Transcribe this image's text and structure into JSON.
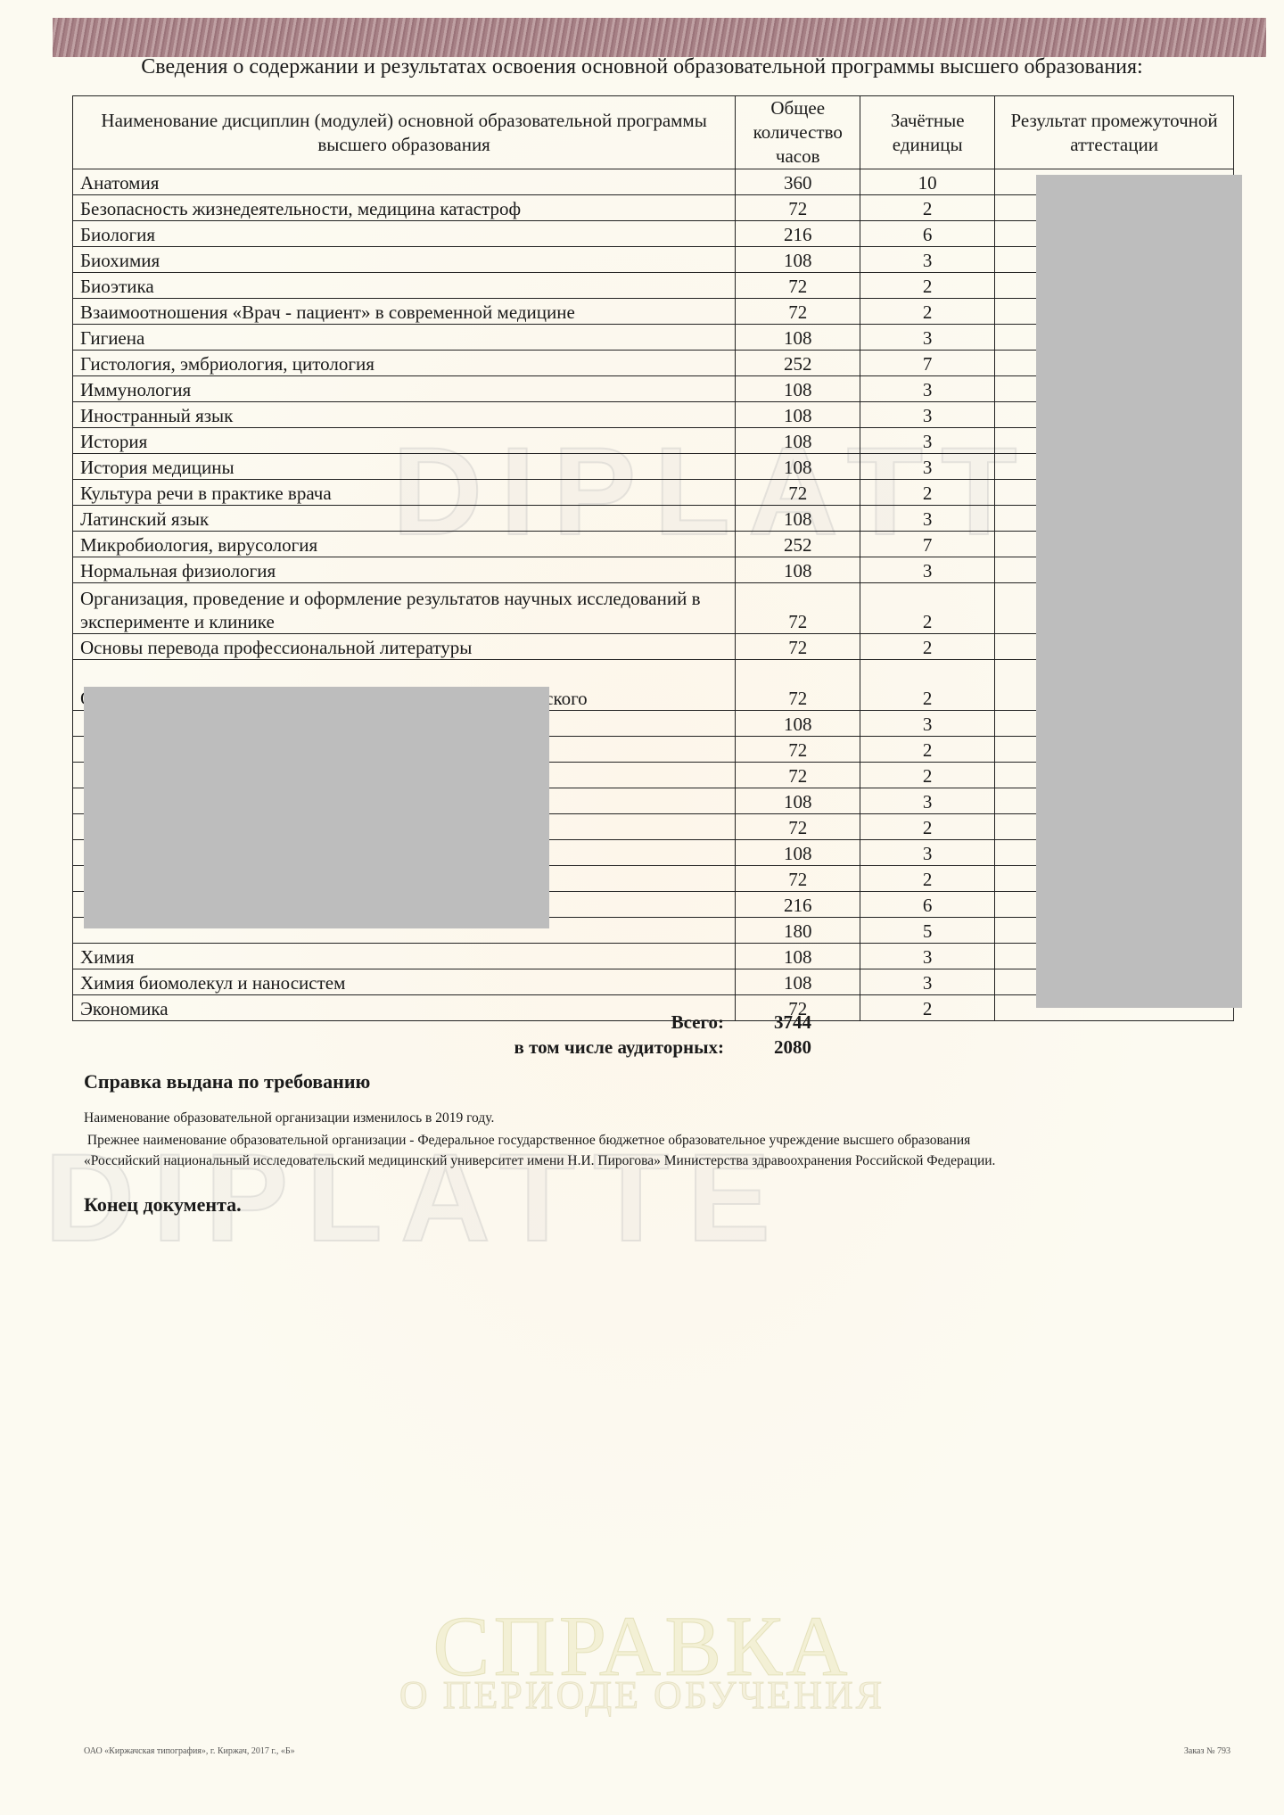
{
  "title": "Сведения о содержании и результатах освоения основной образовательной программы высшего  образования:",
  "table": {
    "headers": [
      "Наименование дисциплин (модулей) основной образовательной программы высшего  образования",
      "Общее количество часов",
      "Зачётные единицы",
      "Результат промежуточной аттестации"
    ],
    "rows": [
      {
        "name": "Анатомия",
        "hours": "360",
        "credits": "10",
        "lines": 1
      },
      {
        "name": "Безопасность жизнедеятельности, медицина катастроф",
        "hours": "72",
        "credits": "2",
        "lines": 1
      },
      {
        "name": "Биология",
        "hours": "216",
        "credits": "6",
        "lines": 1
      },
      {
        "name": "Биохимия",
        "hours": "108",
        "credits": "3",
        "lines": 1
      },
      {
        "name": "Биоэтика",
        "hours": "72",
        "credits": "2",
        "lines": 1
      },
      {
        "name": "Взаимоотношения «Врач - пациент» в современной медицине",
        "hours": "72",
        "credits": "2",
        "lines": 1
      },
      {
        "name": "Гигиена",
        "hours": "108",
        "credits": "3",
        "lines": 1
      },
      {
        "name": "Гистология, эмбриология, цитология",
        "hours": "252",
        "credits": "7",
        "lines": 1
      },
      {
        "name": "Иммунология",
        "hours": "108",
        "credits": "3",
        "lines": 1
      },
      {
        "name": "Иностранный язык",
        "hours": "108",
        "credits": "3",
        "lines": 1
      },
      {
        "name": "История",
        "hours": "108",
        "credits": "3",
        "lines": 1
      },
      {
        "name": "История медицины",
        "hours": "108",
        "credits": "3",
        "lines": 1
      },
      {
        "name": "Культура речи в практике врача",
        "hours": "72",
        "credits": "2",
        "lines": 1
      },
      {
        "name": "Латинский язык",
        "hours": "108",
        "credits": "3",
        "lines": 1
      },
      {
        "name": "Микробиология, вирусология",
        "hours": "252",
        "credits": "7",
        "lines": 1
      },
      {
        "name": "Нормальная физиология",
        "hours": "108",
        "credits": "3",
        "lines": 1
      },
      {
        "name": "Организация, проведение и оформление результатов научных исследований в эксперименте и клинике",
        "hours": "72",
        "credits": "2",
        "lines": 2
      },
      {
        "name": "Основы перевода профессиональной литературы",
        "hours": "72",
        "credits": "2",
        "lines": 1
      },
      {
        "name": "Основы ухода за больными терапевтического и хирургического",
        "hours": "72",
        "credits": "2",
        "lines": 2
      },
      {
        "name": "",
        "hours": "108",
        "credits": "3",
        "lines": 1
      },
      {
        "name": "",
        "hours": "72",
        "credits": "2",
        "lines": 1
      },
      {
        "name": "",
        "hours": "72",
        "credits": "2",
        "lines": 1
      },
      {
        "name": "",
        "hours": "108",
        "credits": "3",
        "lines": 1
      },
      {
        "name": "",
        "hours": "72",
        "credits": "2",
        "lines": 1
      },
      {
        "name": "",
        "hours": "108",
        "credits": "3",
        "lines": 1
      },
      {
        "name": "",
        "hours": "72",
        "credits": "2",
        "lines": 1
      },
      {
        "name": "",
        "hours": "216",
        "credits": "6",
        "lines": 1
      },
      {
        "name": "",
        "hours": "180",
        "credits": "5",
        "lines": 1
      },
      {
        "name": "Химия",
        "hours": "108",
        "credits": "3",
        "lines": 1
      },
      {
        "name": "Химия биомолекул и наносистем",
        "hours": "108",
        "credits": "3",
        "lines": 1
      },
      {
        "name": "Экономика",
        "hours": "72",
        "credits": "2",
        "lines": 1
      }
    ]
  },
  "totals": {
    "total_label": "Всего:",
    "total_value": "3744",
    "classroom_label": "в том числе аудиторных:",
    "classroom_value": "2080"
  },
  "issued": "Справка выдана по требованию",
  "notes": [
    "Наименование образовательной организации изменилось в 2019 году.",
    " Прежнее наименование образовательной организации - Федеральное государственное бюджетное образовательное учреждение высшего образования",
    "«Российский национальный исследовательский медицинский университет имени Н.И. Пирогова» Министерства здравоохранения Российской Федерации."
  ],
  "end": "Конец документа.",
  "watermark": "DIPLATTE",
  "form_title": "СПРАВКА",
  "form_subtitle": "О ПЕРИОДЕ ОБУЧЕНИЯ",
  "footer": {
    "printer": "ОАО «Киржачская типография», г. Киржач, 2017 г., «Б»",
    "order": "Заказ № 793"
  },
  "colors": {
    "band": "#9c7279",
    "paper": "#fcfaf1",
    "redaction": "#bdbdbd"
  }
}
